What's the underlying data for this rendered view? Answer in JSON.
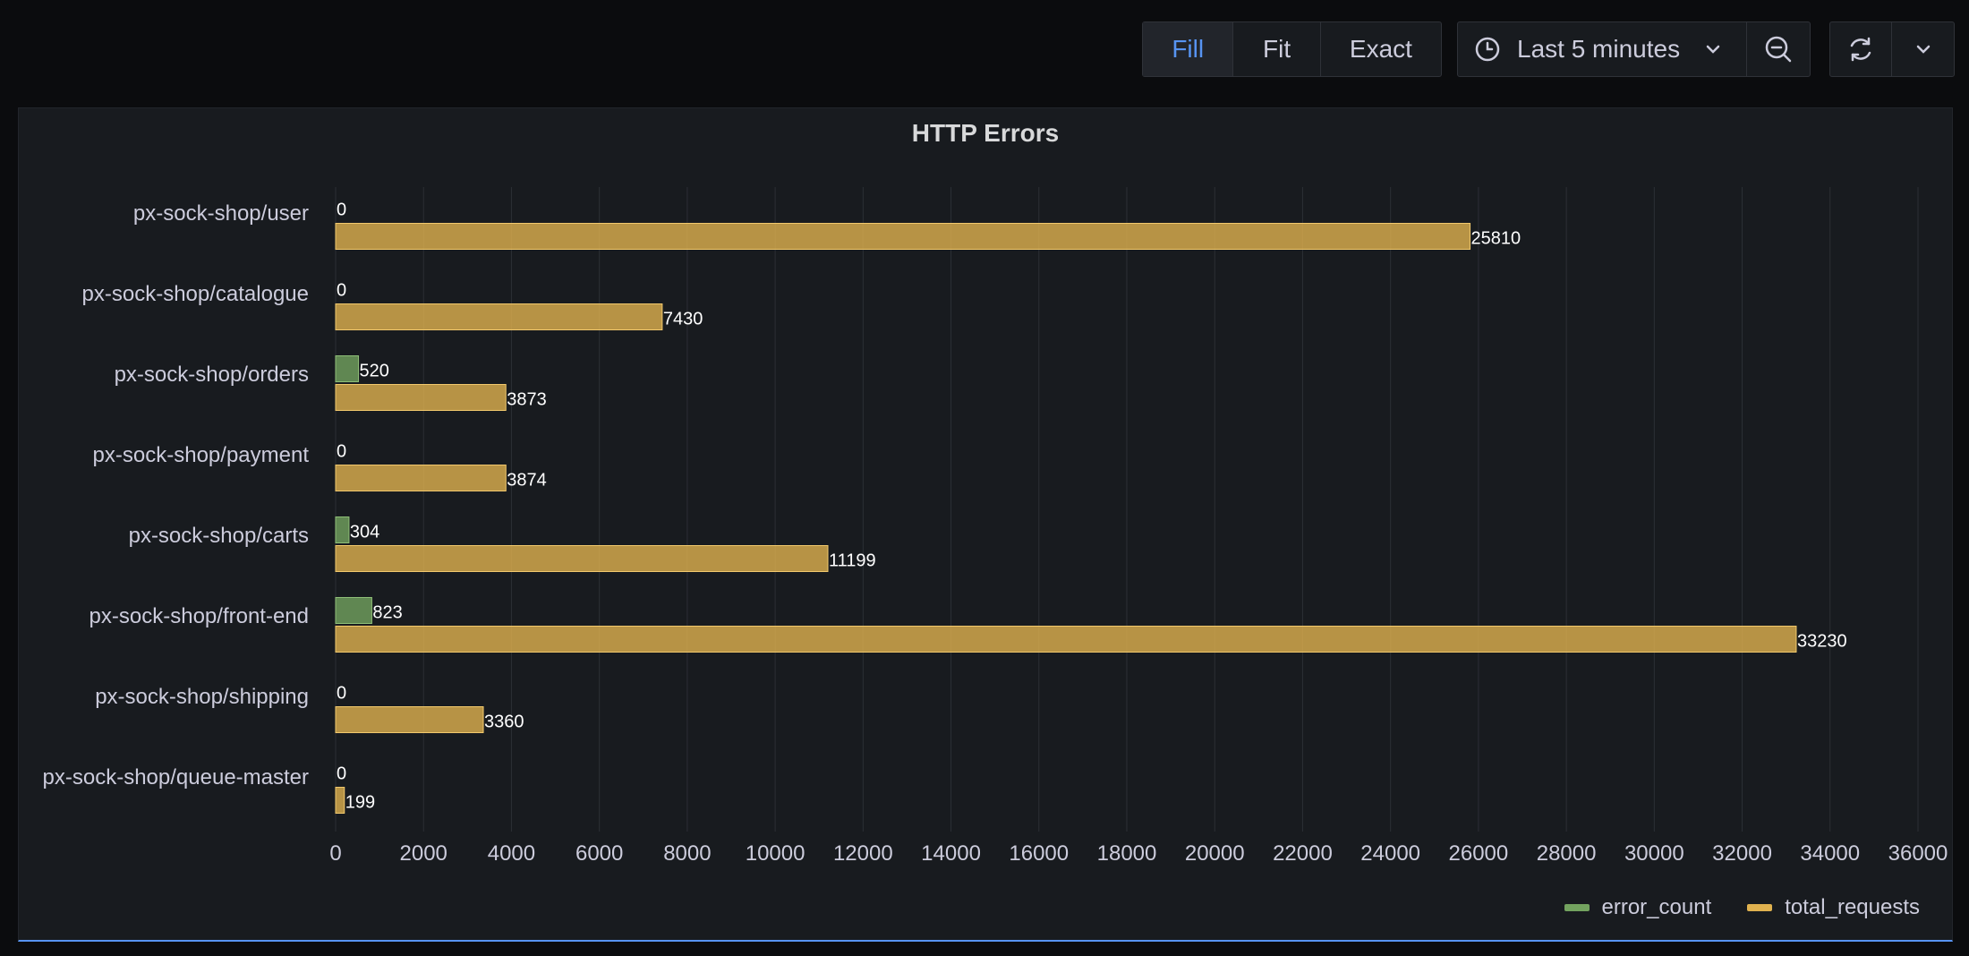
{
  "toolbar": {
    "zoom_modes": [
      "Fill",
      "Fit",
      "Exact"
    ],
    "active_zoom": "Fill",
    "time_range": "Last 5 minutes",
    "icons": [
      "clock-icon",
      "chevron-down-icon",
      "zoom-out-icon",
      "refresh-icon",
      "chevron-down-icon"
    ]
  },
  "panel": {
    "title": "HTTP Errors"
  },
  "colors": {
    "error_count": "#73a35f",
    "total_requests": "#e0b24f"
  },
  "chart_data": {
    "type": "bar",
    "orientation": "horizontal",
    "title": "HTTP Errors",
    "categories": [
      "px-sock-shop/user",
      "px-sock-shop/catalogue",
      "px-sock-shop/orders",
      "px-sock-shop/payment",
      "px-sock-shop/carts",
      "px-sock-shop/front-end",
      "px-sock-shop/shipping",
      "px-sock-shop/queue-master"
    ],
    "series": [
      {
        "name": "error_count",
        "values": [
          0,
          0,
          520,
          0,
          304,
          823,
          0,
          0
        ]
      },
      {
        "name": "total_requests",
        "values": [
          25810,
          7430,
          3873,
          3874,
          11199,
          33230,
          3360,
          199
        ]
      }
    ],
    "xlim": [
      0,
      36000
    ],
    "xticks": [
      0,
      2000,
      4000,
      6000,
      8000,
      10000,
      12000,
      14000,
      16000,
      18000,
      20000,
      22000,
      24000,
      26000,
      28000,
      30000,
      32000,
      34000,
      36000
    ],
    "grid": true,
    "legend": "bottom-right"
  }
}
